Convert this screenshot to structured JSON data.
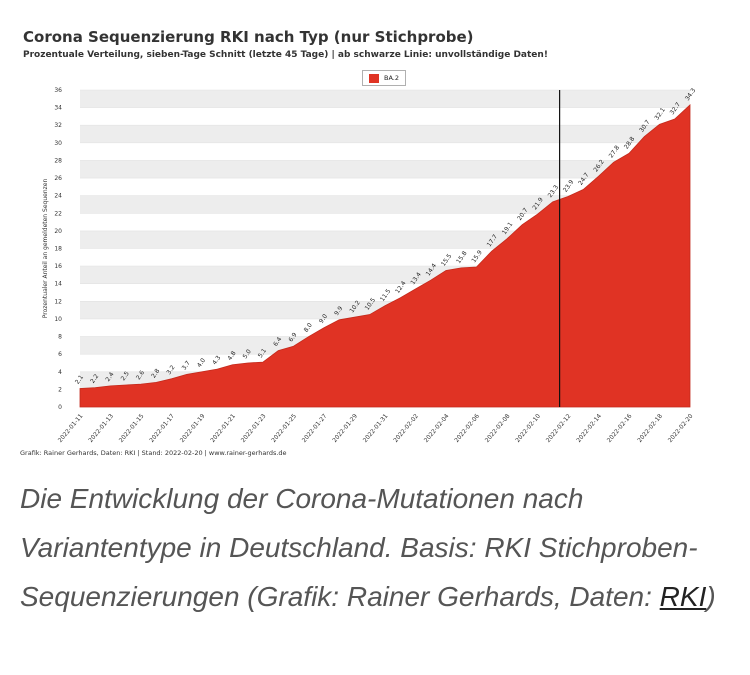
{
  "chart_data": {
    "type": "area",
    "title": "Corona Sequenzierung RKI nach Typ (nur Stichprobe)",
    "subtitle": "Prozentuale Verteilung, sieben-Tage Schnitt (letzte 45 Tage) | ab schwarze Linie: unvollständige Daten!",
    "ylabel": "Prozentualer Anteil an gemeldeten Sequenzen",
    "xlabel": "",
    "ylim": [
      0,
      36
    ],
    "yticks": [
      0,
      2,
      4,
      6,
      8,
      10,
      12,
      14,
      16,
      18,
      20,
      22,
      24,
      26,
      28,
      30,
      32,
      34,
      36
    ],
    "legend_position": "top-center",
    "grid": true,
    "series": [
      {
        "name": "BA.2",
        "color": "#e03324",
        "values": [
          2.1,
          2.2,
          2.4,
          2.5,
          2.6,
          2.8,
          3.2,
          3.7,
          4.0,
          4.3,
          4.8,
          5.0,
          5.1,
          6.4,
          6.9,
          8.0,
          9.0,
          9.9,
          10.2,
          10.5,
          11.5,
          12.4,
          13.4,
          14.4,
          15.5,
          15.8,
          15.9,
          17.7,
          19.1,
          20.7,
          21.9,
          23.3,
          23.9,
          24.7,
          26.2,
          27.8,
          28.8,
          30.7,
          32.1,
          32.7,
          34.3
        ]
      }
    ],
    "x_tick_labels": [
      "2022-01-11",
      "2022-01-13",
      "2022-01-15",
      "2022-01-17",
      "2022-01-19",
      "2022-01-21",
      "2022-01-23",
      "2022-01-25",
      "2022-01-27",
      "2022-01-29",
      "2022-01-31",
      "2022-02-02",
      "2022-02-04",
      "2022-02-06",
      "2022-02-08",
      "2022-02-10",
      "2022-02-12",
      "2022-02-14",
      "2022-02-16",
      "2022-02-18",
      "2022-02-20"
    ],
    "x_start_date": "2022-01-11",
    "incomplete_data_from": "2022-02-12",
    "credit": "Grafik: Rainer Gerhards, Daten: RKI | Stand: 2022-02-20 | www.rainer-gerhards.de"
  },
  "caption": {
    "text": "Die Entwicklung der Corona-Mutationen nach Variantentype in Deutschland. Basis: RKI Stichproben-Sequenzierungen (Grafik: Rainer Gerhards, Daten: ",
    "link_text": "RKI",
    "suffix": ")"
  }
}
